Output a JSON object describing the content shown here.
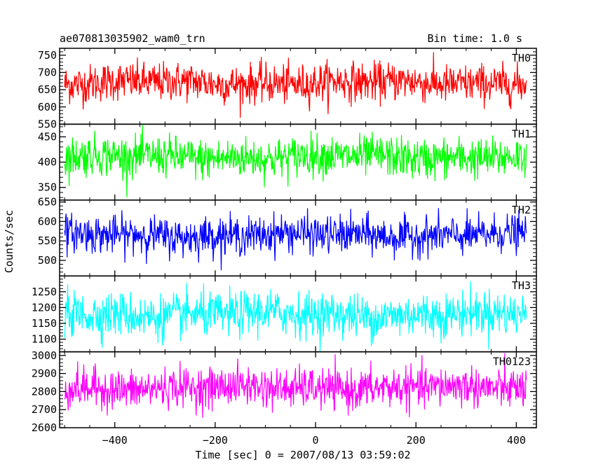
{
  "header": {
    "title": "ae070813035902_wam0_trn",
    "bin_time": "Bin time: 1.0 s"
  },
  "ylabel": "Counts/sec",
  "xlabel": "Time [sec] 0 = 2007/08/13 03:59:02",
  "chart_data": {
    "type": "line",
    "x_range": [
      -500,
      420
    ],
    "x_axis": {
      "lim": [
        -510,
        440
      ],
      "ticks": [
        -400,
        -200,
        0,
        200,
        400
      ],
      "tick_labels": [
        "−400",
        "−200",
        "0",
        "200",
        "400"
      ]
    },
    "bin_time_s": 1.0,
    "series": [
      {
        "name": "TH0",
        "color": "#ff0000",
        "mean": 670,
        "noise": 28,
        "ylim": [
          550,
          770
        ],
        "ticks": [
          550,
          600,
          650,
          700,
          750
        ],
        "tick_labels": [
          "550",
          "600",
          "650",
          "700",
          "750"
        ]
      },
      {
        "name": "TH1",
        "color": "#00ff00",
        "mean": 410,
        "noise": 20,
        "ylim": [
          325,
          475
        ],
        "ticks": [
          350,
          400,
          450
        ],
        "tick_labels": [
          "350",
          "400",
          "450"
        ]
      },
      {
        "name": "TH2",
        "color": "#0000ff",
        "mean": 565,
        "noise": 24,
        "ylim": [
          460,
          655
        ],
        "ticks": [
          500,
          550,
          600,
          650
        ],
        "tick_labels": [
          "500",
          "550",
          "600",
          "650"
        ]
      },
      {
        "name": "TH3",
        "color": "#00ffff",
        "mean": 1178,
        "noise": 35,
        "ylim": [
          1060,
          1300
        ],
        "ticks": [
          1100,
          1150,
          1200,
          1250
        ],
        "tick_labels": [
          "1100",
          "1150",
          "1200",
          "1250"
        ]
      },
      {
        "name": "TH0123",
        "color": "#ff00ff",
        "mean": 2820,
        "noise": 55,
        "ylim": [
          2600,
          3020
        ],
        "ticks": [
          2600,
          2700,
          2800,
          2900,
          3000
        ],
        "tick_labels": [
          "2600",
          "2700",
          "2800",
          "2900",
          "3000"
        ]
      }
    ]
  }
}
